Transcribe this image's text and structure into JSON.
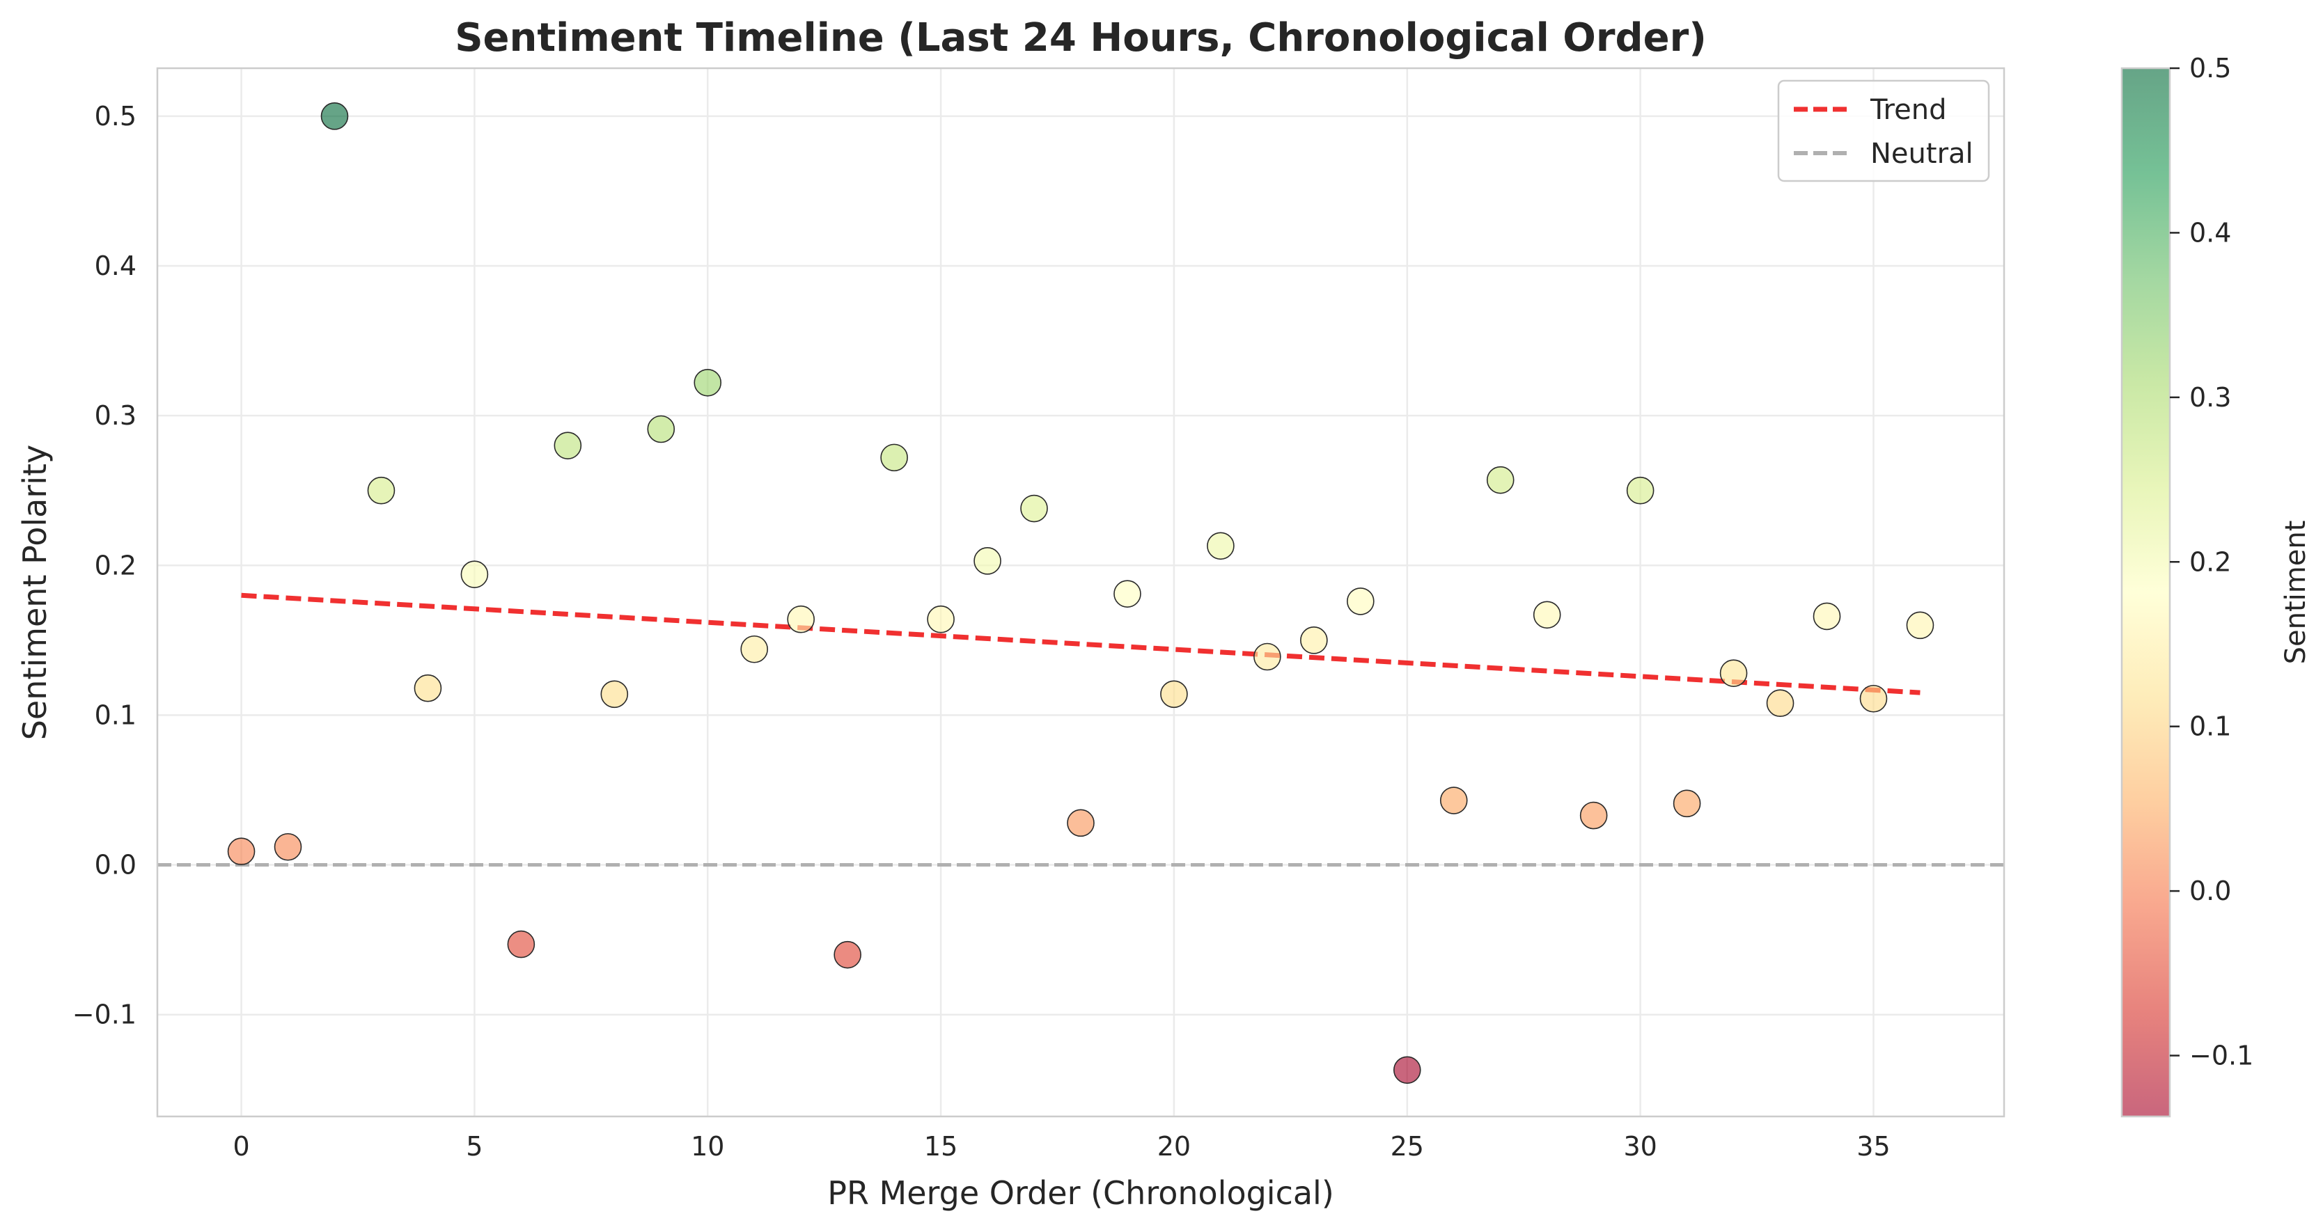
{
  "chart_data": {
    "type": "scatter",
    "title": "Sentiment Timeline (Last 24 Hours, Chronological Order)",
    "xlabel": "PR Merge Order (Chronological)",
    "ylabel": "Sentiment Polarity",
    "xlim": [
      -1.8,
      37.8
    ],
    "ylim": [
      -0.168,
      0.532
    ],
    "x_ticks": [
      0,
      5,
      10,
      15,
      20,
      25,
      30,
      35
    ],
    "y_ticks": [
      -0.1,
      0.0,
      0.1,
      0.2,
      0.3,
      0.4,
      0.5
    ],
    "x_tick_labels": [
      "0",
      "5",
      "10",
      "15",
      "20",
      "25",
      "30",
      "35"
    ],
    "y_tick_labels": [
      "−0.1",
      "0.0",
      "0.1",
      "0.2",
      "0.3",
      "0.4",
      "0.5"
    ],
    "grid": true,
    "legend_position": "top-right",
    "legend": [
      {
        "label": "Trend",
        "color": "#f03030",
        "style": "dashed"
      },
      {
        "label": "Neutral",
        "color": "#b0b0b0",
        "style": "dashed"
      }
    ],
    "points": {
      "x": [
        0,
        1,
        2,
        3,
        4,
        5,
        6,
        7,
        8,
        9,
        10,
        11,
        12,
        13,
        14,
        15,
        16,
        17,
        18,
        19,
        20,
        21,
        22,
        23,
        24,
        25,
        26,
        27,
        28,
        29,
        30,
        31,
        32,
        33,
        34,
        35,
        36
      ],
      "y": [
        0.009,
        0.012,
        0.5,
        0.25,
        0.118,
        0.194,
        -0.053,
        0.28,
        0.114,
        0.291,
        0.322,
        0.144,
        0.164,
        -0.06,
        0.272,
        0.164,
        0.203,
        0.238,
        0.028,
        0.181,
        0.114,
        0.213,
        0.139,
        0.15,
        0.176,
        -0.137,
        0.043,
        0.257,
        0.167,
        0.033,
        0.25,
        0.041,
        0.128,
        0.108,
        0.166,
        0.111,
        0.16
      ]
    },
    "trend": {
      "x": [
        0,
        36
      ],
      "y": [
        0.18,
        0.115
      ],
      "color": "#f03030"
    },
    "neutral_line": {
      "y": 0.0,
      "color": "#b0b0b0"
    },
    "colorbar": {
      "label": "Sentiment",
      "range": [
        -0.137,
        0.5
      ],
      "ticks": [
        -0.1,
        0.0,
        0.1,
        0.2,
        0.3,
        0.4,
        0.5
      ],
      "tick_labels": [
        "−0.1",
        "0.0",
        "0.1",
        "0.2",
        "0.3",
        "0.4",
        "0.5"
      ],
      "colormap": "RdYlGn",
      "colors": [
        "#a50026",
        "#d73027",
        "#f46d43",
        "#fdae61",
        "#fee08b",
        "#ffffbf",
        "#d9ef8b",
        "#a6d96a",
        "#66bd63",
        "#1a9850",
        "#006837"
      ]
    }
  }
}
